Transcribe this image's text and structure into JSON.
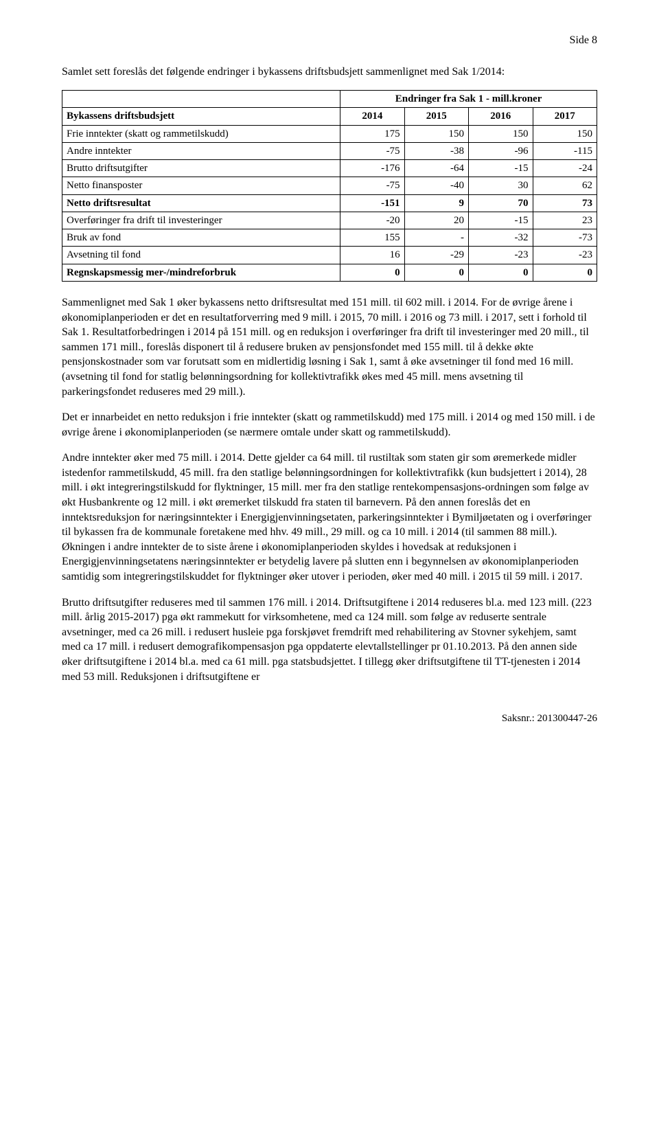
{
  "page_label": "Side 8",
  "intro": "Samlet sett foreslås det følgende endringer i bykassens driftsbudsjett sammenlignet med Sak 1/2014:",
  "table": {
    "super_header": "Endringer fra Sak 1 - mill.kroner",
    "col_headers": [
      "Bykassens driftsbudsjett",
      "2014",
      "2015",
      "2016",
      "2017"
    ],
    "rows": [
      {
        "label": "Frie inntekter (skatt og rammetilskudd)",
        "vals": [
          "175",
          "150",
          "150",
          "150"
        ],
        "bold": false
      },
      {
        "label": "Andre inntekter",
        "vals": [
          "-75",
          "-38",
          "-96",
          "-115"
        ],
        "bold": false
      },
      {
        "label": "Brutto driftsutgifter",
        "vals": [
          "-176",
          "-64",
          "-15",
          "-24"
        ],
        "bold": false
      },
      {
        "label": "Netto finansposter",
        "vals": [
          "-75",
          "-40",
          "30",
          "62"
        ],
        "bold": false
      },
      {
        "label": "Netto driftsresultat",
        "vals": [
          "-151",
          "9",
          "70",
          "73"
        ],
        "bold": true
      },
      {
        "label": "Overføringer fra drift til investeringer",
        "vals": [
          "-20",
          "20",
          "-15",
          "23"
        ],
        "bold": false
      },
      {
        "label": "Bruk av fond",
        "vals": [
          "155",
          "-",
          "-32",
          "-73"
        ],
        "bold": false
      },
      {
        "label": "Avsetning til fond",
        "vals": [
          "16",
          "-29",
          "-23",
          "-23"
        ],
        "bold": false
      },
      {
        "label": "Regnskapsmessig mer-/mindreforbruk",
        "vals": [
          "0",
          "0",
          "0",
          "0"
        ],
        "bold": true
      }
    ],
    "label_col_width": "52%",
    "num_col_width": "12%"
  },
  "paragraphs": [
    "Sammenlignet med Sak 1 øker bykassens netto driftsresultat med 151 mill. til 602 mill. i 2014. For de øvrige årene i økonomiplanperioden er det en resultatforverring med 9 mill. i 2015, 70 mill. i 2016 og 73 mill. i 2017, sett i forhold til Sak 1. Resultatforbedringen i 2014 på 151 mill. og en reduksjon i overføringer fra drift til investeringer med 20 mill., til sammen 171 mill., foreslås disponert til å redusere bruken av pensjonsfondet med 155 mill. til å dekke økte pensjonskostnader som var forutsatt som en midlertidig løsning i Sak 1, samt å øke avsetninger til fond med 16 mill. (avsetning til fond for statlig belønningsordning for kollektivtrafikk økes med 45 mill. mens avsetning til parkeringsfondet reduseres med 29 mill.).",
    "Det er innarbeidet en netto reduksjon i frie inntekter (skatt og rammetilskudd) med 175 mill. i 2014 og med 150 mill. i de øvrige årene i økonomiplanperioden (se nærmere omtale under skatt og rammetilskudd).",
    "Andre inntekter øker med 75 mill. i 2014. Dette gjelder ca 64 mill. til rustiltak som staten gir som øremerkede midler istedenfor rammetilskudd, 45 mill. fra den statlige belønningsordningen for kollektivtrafikk (kun budsjettert i 2014), 28 mill. i økt integreringstilskudd for flyktninger, 15 mill. mer fra den statlige rentekompensasjons-ordningen som følge av økt Husbankrente og 12 mill. i økt øremerket tilskudd fra staten til barnevern. På den annen foreslås det en inntektsreduksjon for næringsinntekter i Energigjenvinningsetaten, parkeringsinntekter i Bymiljøetaten og i overføringer til bykassen fra de kommunale foretakene med hhv. 49 mill., 29 mill. og ca 10 mill. i 2014 (til sammen 88 mill.). Økningen i andre inntekter de to siste årene i økonomiplanperioden skyldes i hovedsak at reduksjonen i Energigjenvinningsetatens næringsinntekter er betydelig lavere på slutten enn i begynnelsen av økonomiplanperioden samtidig som integreringstilskuddet for flyktninger øker utover i perioden, øker med 40 mill. i 2015 til 59 mill. i 2017.",
    "Brutto driftsutgifter reduseres med til sammen 176 mill. i 2014. Driftsutgiftene i 2014 reduseres bl.a. med 123 mill. (223 mill. årlig 2015-2017) pga økt rammekutt for virksomhetene, med ca 124 mill. som følge av reduserte sentrale avsetninger, med ca 26 mill. i redusert husleie pga forskjøvet fremdrift med rehabilitering av Stovner sykehjem, samt med ca 17 mill. i redusert demografikompensasjon pga oppdaterte elevtallstellinger pr 01.10.2013. På den annen side øker driftsutgiftene i 2014 bl.a. med ca 61 mill. pga statsbudsjettet. I tillegg øker driftsutgiftene til TT-tjenesten i 2014 med 53 mill. Reduksjonen i driftsutgiftene er"
  ],
  "footer": "Saksnr.: 201300447-26"
}
